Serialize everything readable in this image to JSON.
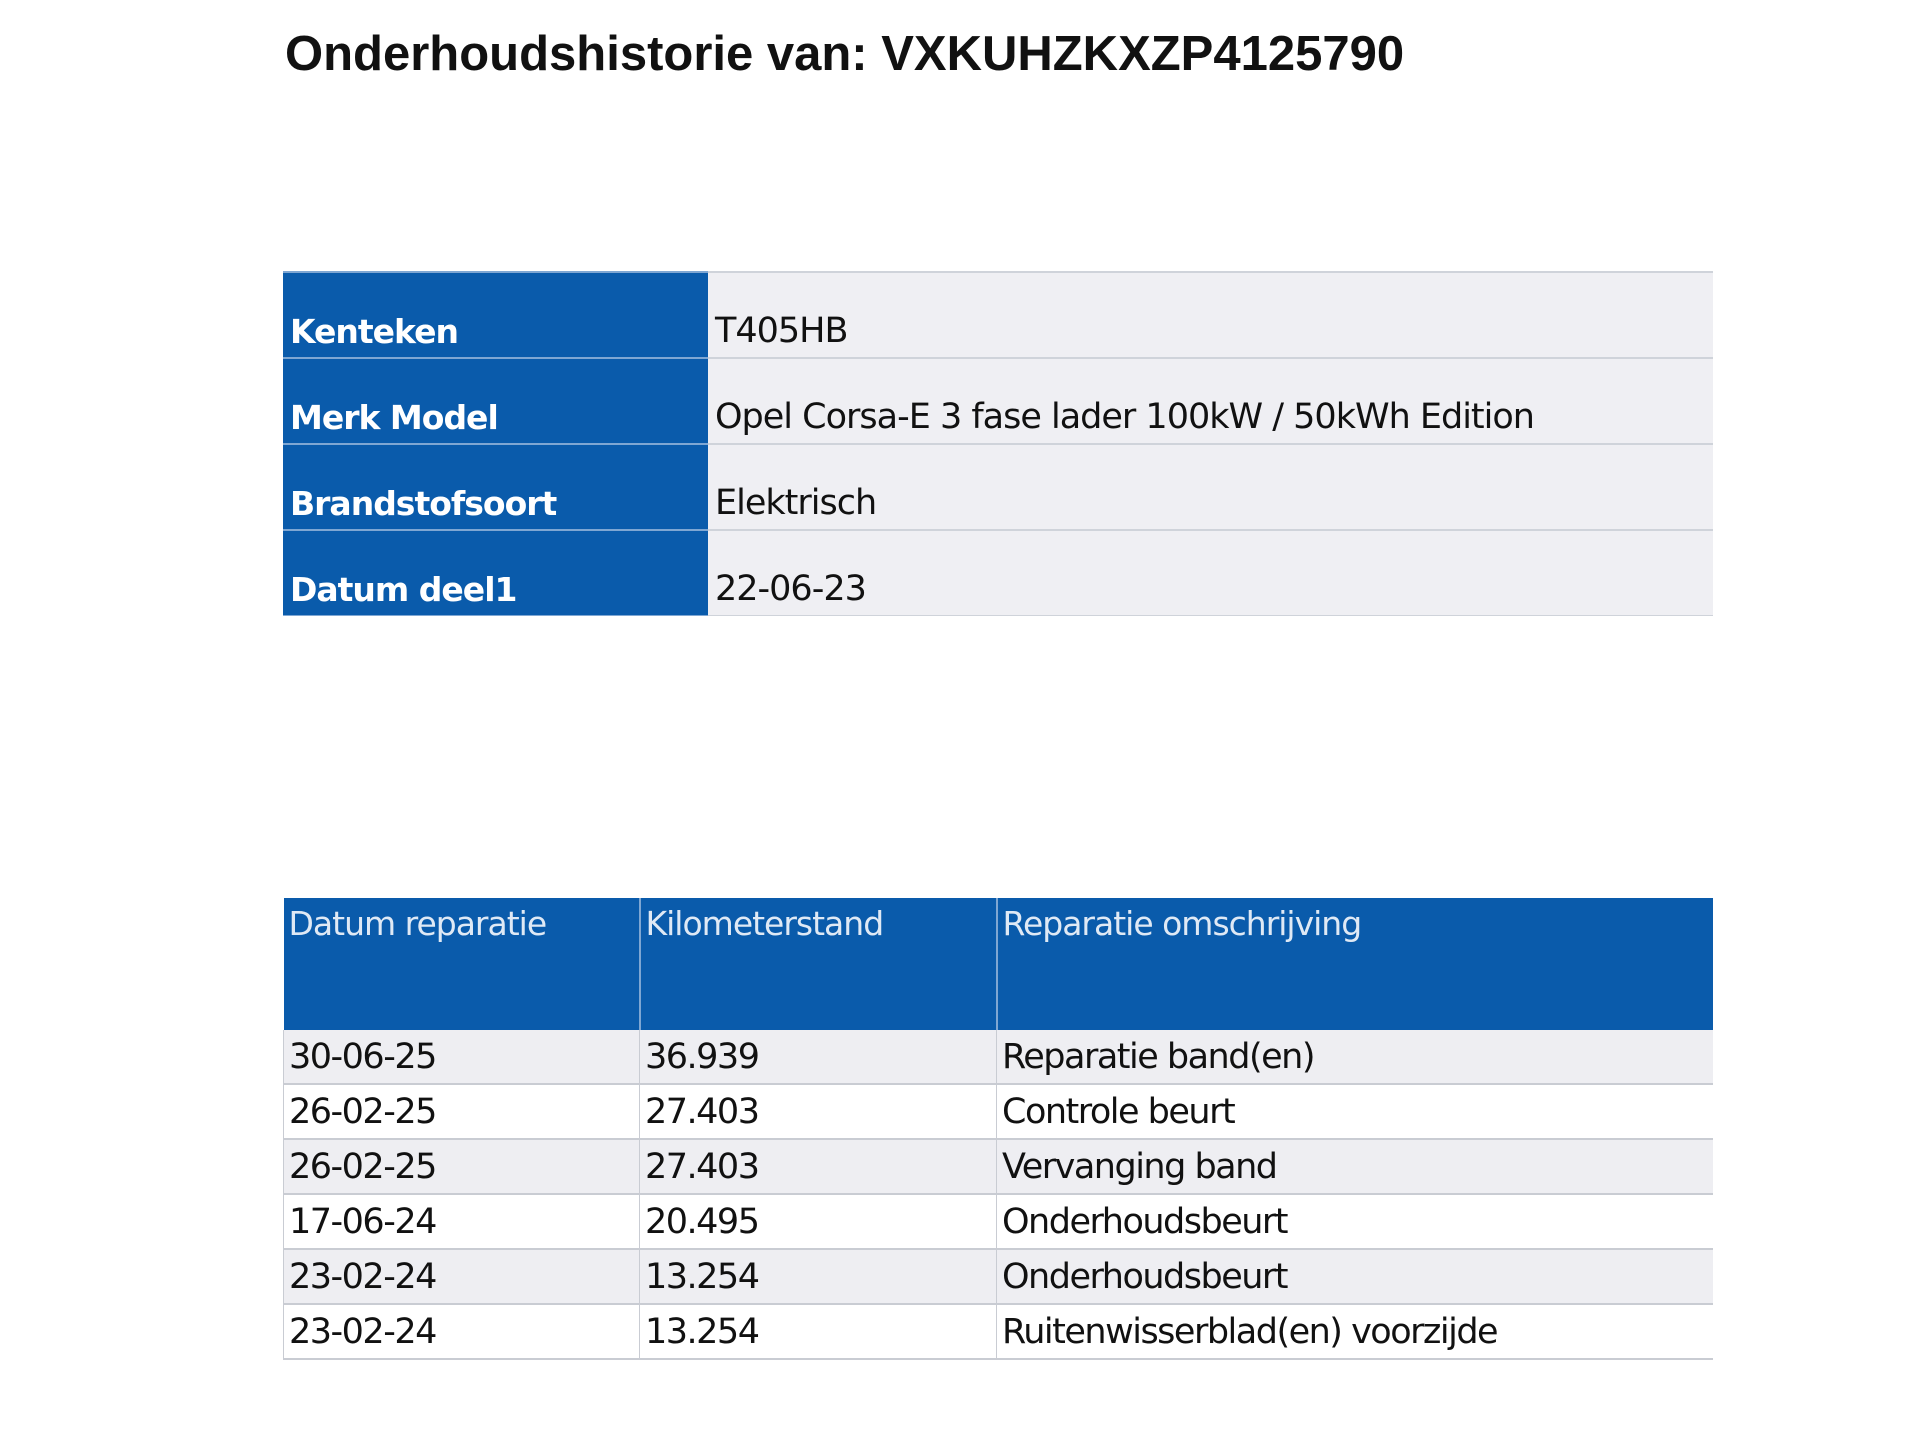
{
  "title": "Onderhoudshistorie van: VXKUHZKXZP4125790",
  "vehicle": [
    {
      "label": "Kenteken",
      "value": "T405HB"
    },
    {
      "label": "Merk Model",
      "value": "Opel Corsa-E 3 fase lader 100kW / 50kWh Edition"
    },
    {
      "label": "Brandstofsoort",
      "value": "Elektrisch"
    },
    {
      "label": "Datum deel1",
      "value": "22-06-23"
    }
  ],
  "history": {
    "headers": [
      "Datum reparatie",
      "Kilometerstand",
      "Reparatie omschrijving"
    ],
    "rows": [
      [
        "30-06-25",
        "36.939",
        "Reparatie band(en)"
      ],
      [
        "26-02-25",
        "27.403",
        "Controle beurt"
      ],
      [
        "26-02-25",
        "27.403",
        "Vervanging band"
      ],
      [
        "17-06-24",
        "20.495",
        "Onderhoudsbeurt"
      ],
      [
        "23-02-24",
        "13.254",
        "Onderhoudsbeurt"
      ],
      [
        "23-02-24",
        "13.254",
        "Ruitenwisserblad(en) voorzijde"
      ]
    ]
  },
  "colors": {
    "header_blue": "#0a5bab"
  }
}
